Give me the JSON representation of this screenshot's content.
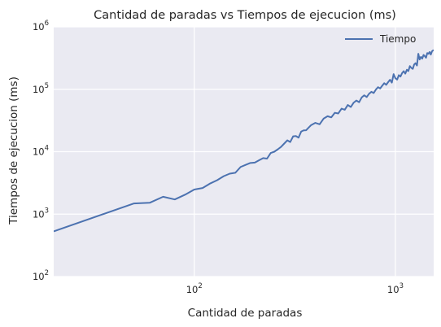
{
  "chart_data": {
    "type": "line",
    "title": "Cantidad de paradas vs Tiempos de ejecucion (ms)",
    "xlabel": "Cantidad de paradas",
    "ylabel": "Tiempos de ejecucion (ms)",
    "xscale": "log",
    "yscale": "log",
    "xlim": [
      20,
      1550
    ],
    "ylim": [
      100,
      1000000
    ],
    "x_ticks": [
      {
        "base": "10",
        "exp": "2",
        "value": 100
      },
      {
        "base": "10",
        "exp": "3",
        "value": 1000
      }
    ],
    "y_ticks": [
      {
        "base": "10",
        "exp": "2",
        "value": 100
      },
      {
        "base": "10",
        "exp": "3",
        "value": 1000
      },
      {
        "base": "10",
        "exp": "4",
        "value": 10000
      },
      {
        "base": "10",
        "exp": "5",
        "value": 100000
      },
      {
        "base": "10",
        "exp": "6",
        "value": 1000000
      }
    ],
    "grid": true,
    "legend_position": "top-right",
    "colors": {
      "background": "#eaeaf2",
      "grid": "#ffffff",
      "line": "#4c72b0"
    },
    "series": [
      {
        "name": "Tiempo",
        "x": [
          20,
          50,
          60,
          70,
          80,
          90,
          100,
          110,
          120,
          130,
          140,
          150,
          160,
          170,
          180,
          190,
          200,
          210,
          220,
          230,
          240,
          250,
          260,
          270,
          280,
          290,
          300,
          310,
          320,
          330,
          340,
          350,
          360,
          380,
          400,
          420,
          440,
          460,
          480,
          500,
          520,
          540,
          560,
          580,
          600,
          620,
          640,
          660,
          680,
          700,
          720,
          740,
          760,
          780,
          800,
          820,
          840,
          860,
          880,
          900,
          920,
          940,
          960,
          980,
          1000,
          1020,
          1040,
          1060,
          1080,
          1100,
          1120,
          1140,
          1160,
          1180,
          1200,
          1220,
          1240,
          1260,
          1280,
          1300,
          1320,
          1340,
          1360,
          1380,
          1400,
          1420,
          1440,
          1460,
          1480,
          1500,
          1520,
          1540,
          1550
        ],
        "values": [
          530,
          1480,
          1520,
          1900,
          1720,
          2050,
          2480,
          2620,
          3100,
          3500,
          4050,
          4450,
          4600,
          5700,
          6150,
          6600,
          6700,
          7300,
          7900,
          7750,
          9550,
          10000,
          10900,
          11950,
          13500,
          15200,
          14300,
          17600,
          17800,
          16800,
          21000,
          22000,
          22100,
          26500,
          29000,
          27500,
          34000,
          37000,
          35500,
          42000,
          41000,
          49000,
          47000,
          56000,
          52000,
          61000,
          66000,
          62000,
          74000,
          80000,
          75000,
          85000,
          91000,
          87000,
          99000,
          108000,
          103000,
          114000,
          125000,
          118000,
          130000,
          142000,
          128000,
          175000,
          150000,
          143000,
          168000,
          160000,
          182000,
          195000,
          178000,
          205000,
          196000,
          235000,
          220000,
          212000,
          250000,
          262000,
          240000,
          370000,
          300000,
          330000,
          310000,
          355000,
          340000,
          320000,
          380000,
          370000,
          395000,
          360000,
          405000,
          420000,
          415000
        ]
      }
    ]
  }
}
